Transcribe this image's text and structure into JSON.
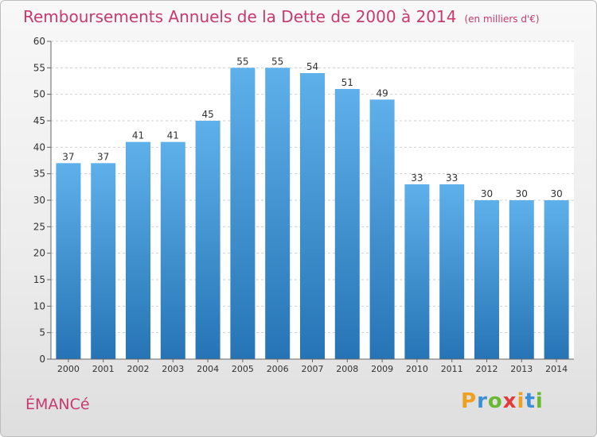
{
  "header": {
    "title": "Remboursements Annuels de la Dette de 2000 à 2014",
    "subtitle": "(en milliers d'€)"
  },
  "footer": {
    "commune": "ÉMANCé",
    "logo": [
      "P",
      "r",
      "o",
      "x",
      "i",
      "t",
      "i"
    ]
  },
  "colors": {
    "accent": "#c63a6e",
    "bar_top": "#5eb0ea",
    "bar_bottom": "#2674b5"
  },
  "chart_data": {
    "type": "bar",
    "title": "Remboursements Annuels de la Dette de 2000 à 2014",
    "xlabel": "",
    "ylabel": "",
    "categories": [
      "2000",
      "2001",
      "2002",
      "2003",
      "2004",
      "2005",
      "2006",
      "2007",
      "2008",
      "2009",
      "2010",
      "2011",
      "2012",
      "2013",
      "2014"
    ],
    "values": [
      37,
      37,
      41,
      41,
      45,
      55,
      55,
      54,
      51,
      49,
      33,
      33,
      30,
      30,
      30
    ],
    "ylim": [
      0,
      60
    ],
    "yticks": [
      0,
      5,
      10,
      15,
      20,
      25,
      30,
      35,
      40,
      45,
      50,
      55,
      60
    ],
    "grid": true
  }
}
